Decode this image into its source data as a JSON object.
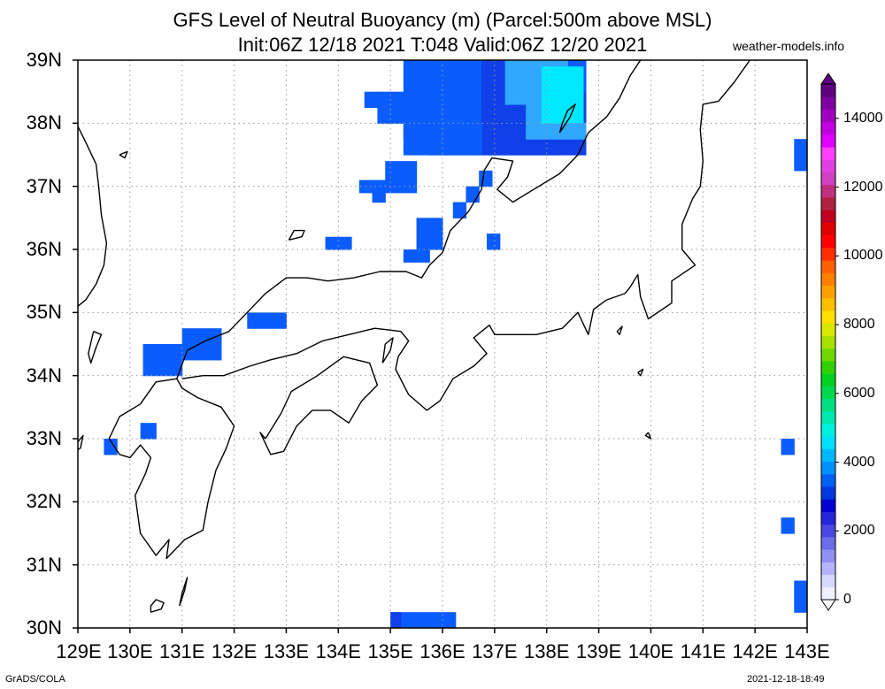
{
  "title_line1": "GFS Level of Neutral Buoyancy (m) (Parcel:500m above MSL)",
  "title_line2": "Init:06Z 12/18 2021 T:048 Valid:06Z 12/20 2021",
  "site": "weather-models.info",
  "footer_left": "GrADS/COLA",
  "footer_right": "2021-12-18-18:49",
  "map": {
    "lon_range": [
      129,
      143
    ],
    "lat_range": [
      30,
      39
    ],
    "lon_labels": [
      "129E",
      "130E",
      "131E",
      "132E",
      "133E",
      "134E",
      "135E",
      "136E",
      "137E",
      "138E",
      "139E",
      "140E",
      "141E",
      "142E",
      "143E"
    ],
    "lat_labels": [
      "39N",
      "38N",
      "37N",
      "36N",
      "35N",
      "34N",
      "33N",
      "32N",
      "31N",
      "30N"
    ]
  },
  "colorbar": {
    "labels": [
      "14000",
      "12000",
      "10000",
      "8000",
      "6000",
      "4000",
      "2000",
      "0"
    ],
    "colors": [
      "#f0f0ff",
      "#d8d8ff",
      "#b4b4ff",
      "#9090f0",
      "#6c6ce8",
      "#4848e0",
      "#2424d8",
      "#0000d0",
      "#0038e0",
      "#0060f0",
      "#0090ff",
      "#00b8ff",
      "#00e0ff",
      "#00f0e0",
      "#00e8b0",
      "#00e080",
      "#00d850",
      "#00d020",
      "#30d000",
      "#70d800",
      "#a8e000",
      "#d8e800",
      "#ffe000",
      "#ffc000",
      "#ffa000",
      "#ff8000",
      "#ff6000",
      "#ff3000",
      "#ff0000",
      "#e00000",
      "#c00020",
      "#b02040",
      "#c03080",
      "#d040c0",
      "#e040e0",
      "#ff40ff",
      "#e000ff",
      "#c000e0",
      "#a000c0",
      "#8000a0",
      "#600080"
    ]
  },
  "colors": {
    "lnb_blue": "#0a5cff",
    "lnb_dark": "#1040e8",
    "lnb_light": "#30a8ff",
    "lnb_cyan": "#00e8ff"
  }
}
